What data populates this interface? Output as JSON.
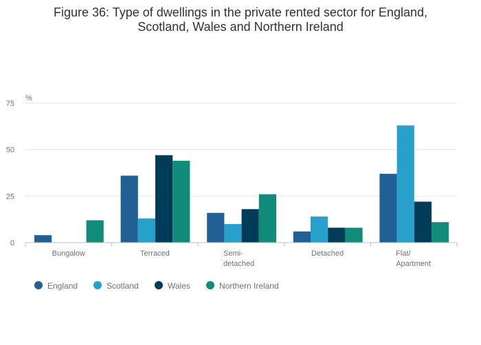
{
  "chart_data": {
    "type": "bar",
    "title_line1": "Figure 36: Type of dwellings in the private rented sector for England,",
    "title_line2": "Scotland, Wales and Northern Ireland",
    "ylabel": "%",
    "xlabel": "",
    "ylim": [
      0,
      75
    ],
    "yticks": [
      0,
      25,
      50,
      75
    ],
    "grid": true,
    "legend_position": "bottom-left",
    "categories": [
      {
        "lines": [
          "Bungalow"
        ]
      },
      {
        "lines": [
          "Terraced"
        ]
      },
      {
        "lines": [
          "Semi-",
          "detached"
        ]
      },
      {
        "lines": [
          "Detached"
        ]
      },
      {
        "lines": [
          "Flat/",
          "Apartment"
        ]
      }
    ],
    "series": [
      {
        "name": "England",
        "color": "#206095",
        "values": [
          4,
          36,
          16,
          6,
          37
        ]
      },
      {
        "name": "Scotland",
        "color": "#27a0cc",
        "values": [
          0,
          13,
          10,
          14,
          63
        ]
      },
      {
        "name": "Wales",
        "color": "#003c57",
        "values": [
          0,
          47,
          18,
          8,
          22
        ]
      },
      {
        "name": "Northern Ireland",
        "color": "#118c7b",
        "values": [
          12,
          44,
          26,
          8,
          11
        ]
      }
    ]
  }
}
